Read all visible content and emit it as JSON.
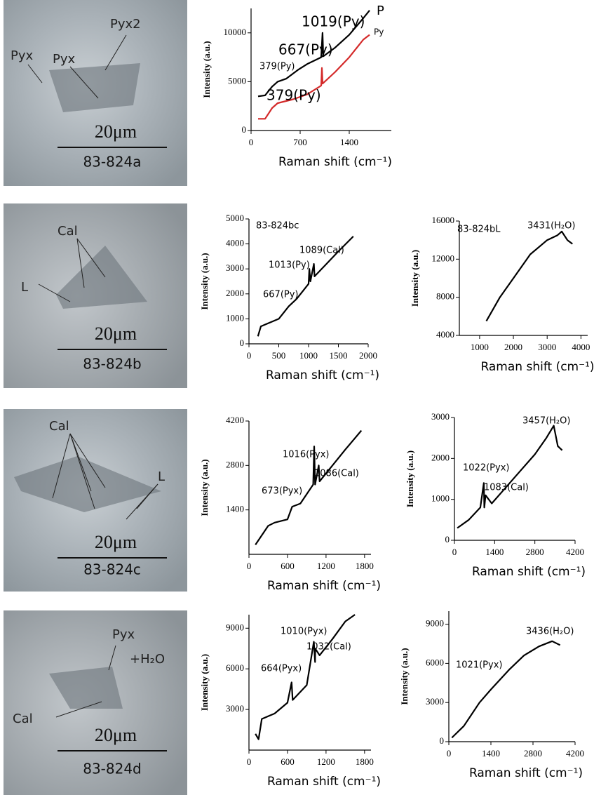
{
  "micrographs": [
    {
      "labels": [
        "Pyx2",
        "Pyx",
        "Pyx"
      ],
      "scale": "20μm",
      "sample": "83-824a"
    },
    {
      "labels": [
        "Cal",
        "L"
      ],
      "scale": "20μm",
      "sample": "83-824b"
    },
    {
      "labels": [
        "Cal",
        "L"
      ],
      "scale": "20μm",
      "sample": "83-824c"
    },
    {
      "labels": [
        "Pyx",
        "+H₂O",
        "Cal"
      ],
      "scale": "20μm",
      "sample": "83-824d"
    }
  ],
  "chart_data": [
    {
      "type": "line",
      "xlabel": "Raman shift (cm⁻¹)",
      "ylabel": "Intensity (a.u.)",
      "xlim": [
        0,
        2000
      ],
      "xticks": [
        0,
        700,
        1400
      ],
      "ylim": [
        0,
        12500
      ],
      "yticks": [
        0,
        5000,
        10000
      ],
      "annotations": [
        "1019(Py)",
        "P",
        "667(Py)",
        "379(Py)",
        "Py",
        "379(Py)"
      ],
      "series": [
        {
          "color": "#000000",
          "x": [
            100,
            200,
            300,
            379,
            500,
            667,
            800,
            1000,
            1019,
            1030,
            1200,
            1400,
            1600,
            1690
          ],
          "values": [
            3500,
            3600,
            4500,
            5000,
            5300,
            6200,
            6800,
            7500,
            10000,
            7600,
            8500,
            9800,
            11500,
            12300
          ]
        },
        {
          "color": "#d42a2a",
          "x": [
            100,
            200,
            300,
            379,
            600,
            800,
            1000,
            1010,
            1020,
            1200,
            1400,
            1600,
            1690
          ],
          "values": [
            1200,
            1200,
            2300,
            2800,
            3200,
            3700,
            4600,
            6400,
            4800,
            6000,
            7500,
            9300,
            9800
          ]
        }
      ]
    },
    {
      "type": "line",
      "xlabel": "Raman shift (cm⁻¹)",
      "ylabel": "Intensity (a.u.)",
      "xlim": [
        0,
        2000
      ],
      "xticks": [
        0,
        500,
        1000,
        1500,
        2000
      ],
      "ylim": [
        0,
        5000
      ],
      "yticks": [
        0,
        1000,
        2000,
        3000,
        4000,
        5000
      ],
      "annotations": [
        "83-824bc",
        "1089(Cal)",
        "1013(Py)",
        "667(Py)"
      ],
      "series": [
        {
          "color": "#000000",
          "x": [
            150,
            200,
            300,
            500,
            667,
            800,
            1000,
            1013,
            1030,
            1089,
            1100,
            1300,
            1500,
            1750
          ],
          "values": [
            300,
            700,
            800,
            1000,
            1500,
            1800,
            2400,
            3000,
            2500,
            3200,
            2700,
            3200,
            3700,
            4300
          ]
        }
      ]
    },
    {
      "type": "line",
      "xlabel": "Raman shift (cm⁻¹)",
      "ylabel": "Intensity (a.u.)",
      "xlim": [
        400,
        4200
      ],
      "xticks": [
        1000,
        2000,
        3000,
        4000
      ],
      "ylim": [
        4000,
        16000
      ],
      "yticks": [
        4000,
        8000,
        12000,
        16000
      ],
      "annotations": [
        "83-824bL",
        "3431(H₂O)"
      ],
      "series": [
        {
          "color": "#000000",
          "x": [
            1200,
            1600,
            2000,
            2500,
            3000,
            3300,
            3431,
            3600,
            3750
          ],
          "values": [
            5500,
            8000,
            10000,
            12500,
            14000,
            14500,
            14900,
            14000,
            13600
          ]
        }
      ]
    },
    {
      "type": "line",
      "xlabel": "Raman shift (cm⁻¹)",
      "ylabel": "Intensity (a.u.)",
      "xlim": [
        0,
        1900
      ],
      "xticks": [
        0,
        600,
        1200,
        1800
      ],
      "ylim": [
        0,
        4200
      ],
      "yticks": [
        1400,
        2800,
        4200
      ],
      "annotations": [
        "1016(Pyx)",
        "1086(Cal)",
        "673(Pyx)"
      ],
      "series": [
        {
          "color": "#000000",
          "x": [
            100,
            200,
            300,
            400,
            600,
            673,
            800,
            1000,
            1016,
            1030,
            1086,
            1100,
            1300,
            1500,
            1750
          ],
          "values": [
            300,
            600,
            900,
            1000,
            1100,
            1500,
            1600,
            2200,
            3400,
            2200,
            2800,
            2300,
            2800,
            3300,
            3900
          ]
        }
      ]
    },
    {
      "type": "line",
      "xlabel": "Raman shift (cm⁻¹)",
      "ylabel": "Intensity (a.u.)",
      "xlim": [
        0,
        4200
      ],
      "xticks": [
        0,
        1400,
        2800,
        4200
      ],
      "ylim": [
        0,
        3000
      ],
      "yticks": [
        0,
        1000,
        2000,
        3000
      ],
      "annotations": [
        "3457(H₂O)",
        "1022(Pyx)",
        "1083(Cal)"
      ],
      "series": [
        {
          "color": "#000000",
          "x": [
            100,
            500,
            900,
            1022,
            1040,
            1083,
            1300,
            1800,
            2300,
            2800,
            3200,
            3457,
            3600,
            3750
          ],
          "values": [
            300,
            500,
            800,
            1400,
            800,
            1100,
            900,
            1300,
            1700,
            2100,
            2500,
            2800,
            2300,
            2200
          ]
        }
      ]
    },
    {
      "type": "line",
      "xlabel": "Raman shift (cm⁻¹)",
      "ylabel": "Intensity (a.u.)",
      "xlim": [
        0,
        1900
      ],
      "xticks": [
        0,
        600,
        1200,
        1800
      ],
      "ylim": [
        0,
        10000
      ],
      "yticks": [
        3000,
        6000,
        9000
      ],
      "annotations": [
        "1010(Pyx)",
        "1032(Cal)",
        "664(Pyx)"
      ],
      "series": [
        {
          "color": "#000000",
          "x": [
            100,
            150,
            200,
            400,
            600,
            664,
            680,
            900,
            1010,
            1030,
            1032,
            1100,
            1300,
            1500,
            1650
          ],
          "values": [
            1200,
            800,
            2300,
            2700,
            3500,
            5000,
            3700,
            4800,
            8000,
            6500,
            7500,
            7000,
            8200,
            9500,
            10000
          ]
        }
      ]
    },
    {
      "type": "line",
      "xlabel": "Raman shift (cm⁻¹)",
      "ylabel": "Intensity (a.u.)",
      "xlim": [
        0,
        4200
      ],
      "xticks": [
        0,
        1400,
        2800,
        4200
      ],
      "ylim": [
        0,
        10000
      ],
      "yticks": [
        0,
        3000,
        6000,
        9000
      ],
      "annotations": [
        "3436(H₂O)",
        "1021(Pyx)"
      ],
      "series": [
        {
          "color": "#000000",
          "x": [
            100,
            500,
            1021,
            1400,
            2000,
            2500,
            3000,
            3436,
            3700
          ],
          "values": [
            300,
            1200,
            3000,
            4000,
            5500,
            6600,
            7300,
            7700,
            7400
          ]
        }
      ]
    }
  ]
}
